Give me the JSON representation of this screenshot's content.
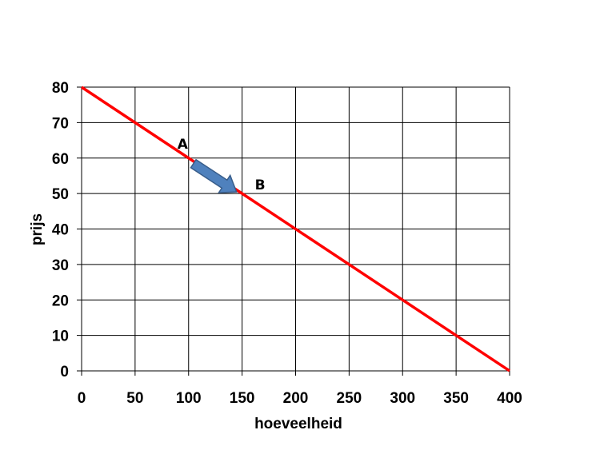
{
  "chart_data": {
    "type": "line",
    "xlabel": "hoeveelheid",
    "ylabel": "prijs",
    "xlim": [
      0,
      400
    ],
    "ylim": [
      0,
      80
    ],
    "x_ticks": [
      0,
      50,
      100,
      150,
      200,
      250,
      300,
      350,
      400
    ],
    "y_ticks": [
      0,
      10,
      20,
      30,
      40,
      50,
      60,
      70,
      80
    ],
    "grid": true,
    "series": [
      {
        "color": "#ff0000",
        "x": [
          0,
          400
        ],
        "y": [
          80,
          0
        ]
      }
    ],
    "annotations": [
      {
        "label": "A",
        "x": 100,
        "y": 60
      },
      {
        "label": "B",
        "x": 150,
        "y": 50
      }
    ],
    "arrow": {
      "from": [
        100,
        60
      ],
      "to": [
        150,
        50
      ],
      "color": "#4f81bd"
    }
  }
}
